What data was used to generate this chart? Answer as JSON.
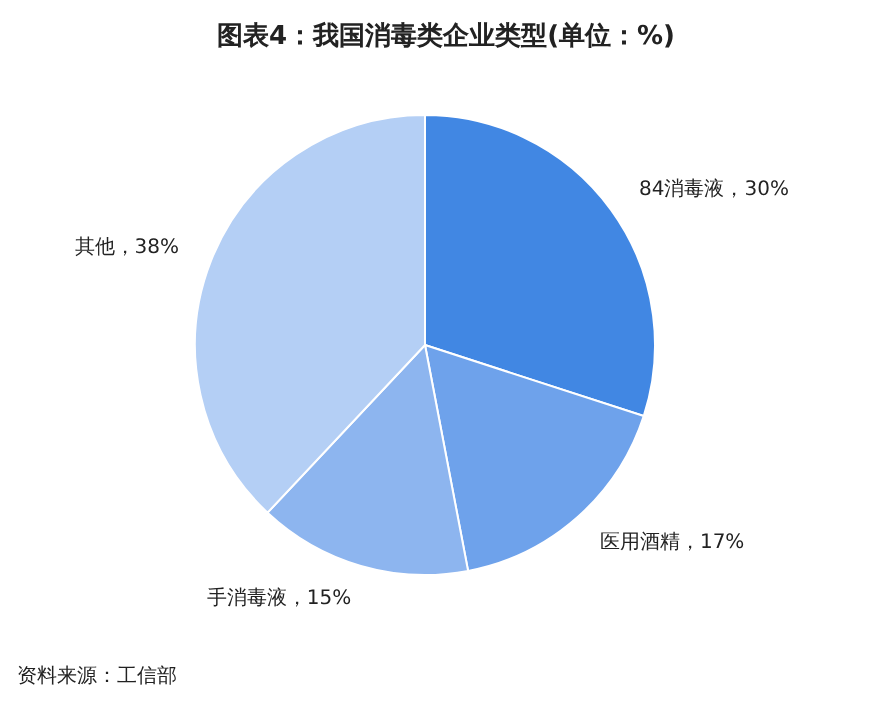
{
  "chart_data": {
    "type": "pie",
    "title": "图表4：我国消毒类企业类型(单位：%)",
    "categories": [
      "84消毒液",
      "医用酒精",
      "手消毒液",
      "其他"
    ],
    "values": [
      30,
      17,
      15,
      38
    ],
    "value_labels": [
      "30%",
      "17%",
      "15%",
      "38%"
    ],
    "colors": [
      "#4187e3",
      "#6ea2eb",
      "#8db5ef",
      "#b4cff5"
    ],
    "annotations": [
      "资料来源：工信部"
    ]
  }
}
